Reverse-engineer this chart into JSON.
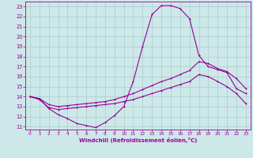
{
  "xlabel": "Windchill (Refroidissement éolien,°C)",
  "bg_color": "#cde8e8",
  "grid_color": "#aacccc",
  "line_color": "#990099",
  "xlim": [
    -0.5,
    23.5
  ],
  "ylim": [
    10.7,
    23.5
  ],
  "xticks": [
    0,
    1,
    2,
    3,
    4,
    5,
    6,
    7,
    8,
    9,
    10,
    11,
    12,
    13,
    14,
    15,
    16,
    17,
    18,
    19,
    20,
    21,
    22,
    23
  ],
  "yticks": [
    11,
    12,
    13,
    14,
    15,
    16,
    17,
    18,
    19,
    20,
    21,
    22,
    23
  ],
  "line1_x": [
    0,
    1,
    2,
    3,
    4,
    5,
    6,
    7,
    8,
    9,
    10,
    11,
    12,
    13,
    14,
    15,
    16,
    17,
    18,
    19,
    20,
    21,
    22,
    23
  ],
  "line1_y": [
    14.0,
    13.8,
    12.8,
    12.2,
    11.8,
    11.3,
    11.1,
    10.9,
    11.4,
    12.1,
    13.0,
    15.5,
    19.0,
    22.2,
    23.1,
    23.1,
    22.8,
    21.8,
    18.1,
    17.0,
    16.7,
    16.4,
    14.8,
    14.3
  ],
  "line2_x": [
    0,
    1,
    2,
    3,
    4,
    5,
    6,
    7,
    8,
    9,
    10,
    11,
    12,
    13,
    14,
    15,
    16,
    17,
    18,
    19,
    20,
    21,
    22,
    23
  ],
  "line2_y": [
    14.0,
    13.8,
    13.2,
    13.0,
    13.1,
    13.2,
    13.3,
    13.4,
    13.5,
    13.7,
    14.0,
    14.3,
    14.7,
    15.1,
    15.5,
    15.8,
    16.2,
    16.6,
    17.5,
    17.3,
    16.8,
    16.5,
    15.8,
    14.8
  ],
  "line3_x": [
    0,
    1,
    2,
    3,
    4,
    5,
    6,
    7,
    8,
    9,
    10,
    11,
    12,
    13,
    14,
    15,
    16,
    17,
    18,
    19,
    20,
    21,
    22,
    23
  ],
  "line3_y": [
    14.0,
    13.7,
    12.9,
    12.7,
    12.8,
    12.9,
    13.0,
    13.1,
    13.2,
    13.3,
    13.5,
    13.7,
    14.0,
    14.3,
    14.6,
    14.9,
    15.2,
    15.5,
    16.2,
    16.0,
    15.5,
    15.0,
    14.3,
    13.3
  ]
}
